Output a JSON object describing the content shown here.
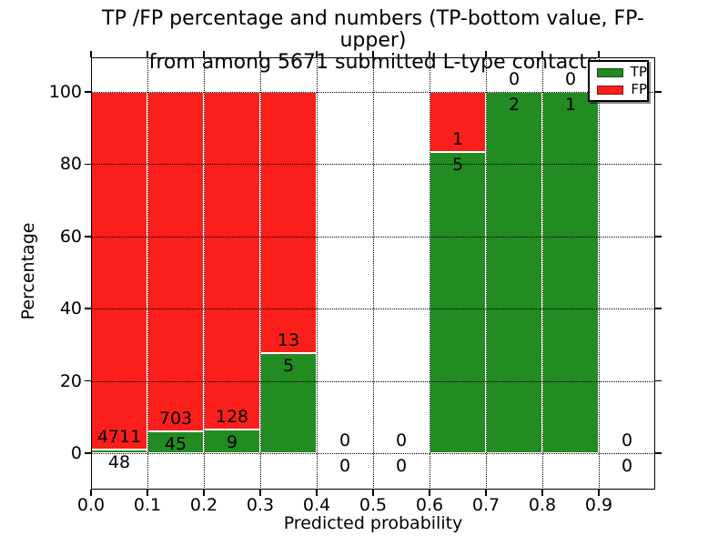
{
  "title": {
    "line1": "TP /FP percentage and numbers (TP-bottom value, FP-upper)",
    "line2": "from among 5671 submitted L-type contacts"
  },
  "chart_data": {
    "type": "bar",
    "stacked": true,
    "title": "TP /FP percentage and numbers (TP-bottom value, FP-upper) from among 5671 submitted L-type contacts",
    "xlabel": "Predicted probability",
    "ylabel": "Percentage",
    "xlim": [
      0.0,
      1.0
    ],
    "ylim": [
      -10.1,
      109.6
    ],
    "xtick_values": [
      0.0,
      0.1,
      0.2,
      0.3,
      0.4,
      0.5,
      0.6,
      0.7,
      0.8,
      0.9
    ],
    "xtick_labels": [
      "0.0",
      "0.1",
      "0.2",
      "0.3",
      "0.4",
      "0.5",
      "0.6",
      "0.7",
      "0.8",
      "0.9"
    ],
    "ytick_values": [
      0,
      20,
      40,
      60,
      80,
      100
    ],
    "ytick_labels": [
      "0",
      "20",
      "40",
      "60",
      "80",
      "100"
    ],
    "grid": "dotted",
    "bar_edge_color": "#ffffff",
    "bins": [
      [
        0.0,
        0.1
      ],
      [
        0.1,
        0.2
      ],
      [
        0.2,
        0.3
      ],
      [
        0.3,
        0.4
      ],
      [
        0.4,
        0.5
      ],
      [
        0.5,
        0.6
      ],
      [
        0.6,
        0.7
      ],
      [
        0.7,
        0.8
      ],
      [
        0.8,
        0.9
      ],
      [
        0.9,
        1.0
      ]
    ],
    "series": [
      {
        "name": "TP",
        "color": "#228b22",
        "counts": [
          48,
          45,
          9,
          5,
          0,
          0,
          5,
          2,
          1,
          0
        ]
      },
      {
        "name": "FP",
        "color": "#fa1f1a",
        "counts": [
          4711,
          703,
          128,
          13,
          0,
          0,
          1,
          0,
          0,
          0
        ]
      }
    ],
    "tp_percent": [
      1.01,
      6.02,
      6.57,
      27.78,
      0,
      0,
      83.33,
      100,
      100,
      0
    ],
    "legend": {
      "position": "upper right",
      "entries": [
        {
          "label": "TP",
          "color": "#228b22"
        },
        {
          "label": "FP",
          "color": "#fa1f1a"
        }
      ]
    }
  }
}
